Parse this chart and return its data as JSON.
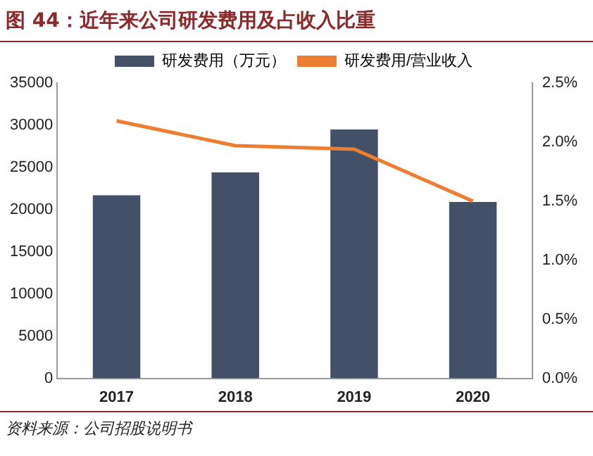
{
  "chart_data": {
    "type": "bar",
    "title": "图 44：近年来公司研发费用及占收入比重",
    "categories": [
      "2017",
      "2018",
      "2019",
      "2020"
    ],
    "series": [
      {
        "name": "研发费用（万元）",
        "color": "#445068",
        "values": [
          21700,
          24400,
          29500,
          20900
        ]
      },
      {
        "name": "研发费用/营业收入",
        "type": "line",
        "axis": "y2",
        "color": "#ed7d31",
        "values": [
          2.18,
          1.97,
          1.94,
          1.5
        ]
      }
    ],
    "ylim": [
      0,
      35000
    ],
    "yticks": [
      0,
      5000,
      10000,
      15000,
      20000,
      25000,
      30000,
      35000
    ],
    "y2lim": [
      0,
      2.5
    ],
    "y2ticks": [
      {
        "value": 0,
        "label": "0.0%"
      },
      {
        "value": 0.5,
        "label": "0.5%"
      },
      {
        "value": 1,
        "label": "1.0%"
      },
      {
        "value": 1.5,
        "label": "1.5%"
      },
      {
        "value": 2,
        "label": "2.0%"
      },
      {
        "value": 2.5,
        "label": "2.5%"
      }
    ],
    "legend": "top",
    "grid": false,
    "marker": "none",
    "annotations": [
      "资料来源：公司招股说明书"
    ]
  }
}
